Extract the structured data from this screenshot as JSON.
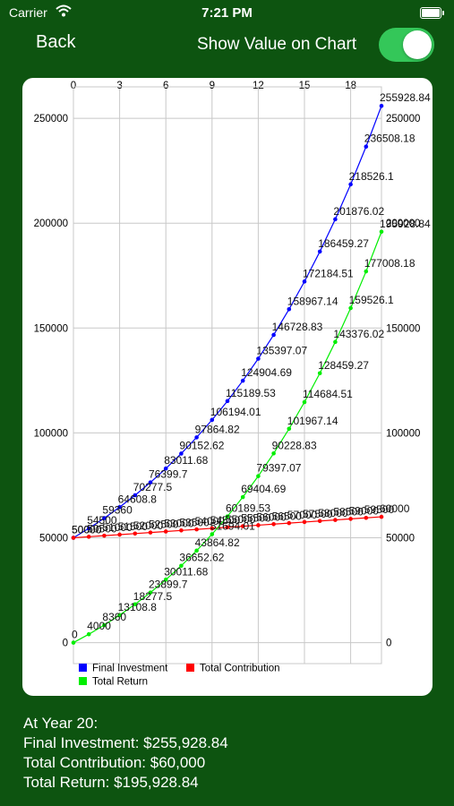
{
  "status_bar": {
    "carrier": "Carrier",
    "time": "7:21 PM"
  },
  "nav": {
    "back_label": "Back",
    "toggle_label": "Show Value on Chart",
    "toggle_on": true
  },
  "chart_data": {
    "type": "line",
    "x": [
      0,
      1,
      2,
      3,
      4,
      5,
      6,
      7,
      8,
      9,
      10,
      11,
      12,
      13,
      14,
      15,
      16,
      17,
      18,
      19,
      20
    ],
    "x_ticks": [
      0,
      3,
      6,
      9,
      12,
      15,
      18
    ],
    "ylim": [
      -10000,
      265000
    ],
    "y_ticks": [
      0,
      50000,
      100000,
      150000,
      200000,
      250000
    ],
    "grid": true,
    "legend_position": "bottom-left",
    "series": [
      {
        "name": "Final Investment",
        "color": "#0000ff",
        "values": [
          50000,
          54500,
          59360,
          64608.8,
          70277.5,
          76399.7,
          83011.68,
          90152.62,
          97864.82,
          106194.01,
          115189.53,
          124904.69,
          135397.07,
          146728.83,
          158967.14,
          172184.51,
          186459.27,
          201876.02,
          218526.1,
          236508.18,
          255928.84
        ],
        "labels": [
          "50000",
          "54500",
          "59360",
          "64608.8",
          "70277.5",
          "76399.7",
          "83011.68",
          "90152.62",
          "97864.82",
          "106194.01",
          "115189.53",
          "124904.69",
          "135397.07",
          "146728.83",
          "158967.14",
          "172184.51",
          "186459.27",
          "201876.02",
          "218526.1",
          "236508.18",
          "255928.84"
        ]
      },
      {
        "name": "Total Contribution",
        "color": "#ff0000",
        "values": [
          50000,
          50500,
          51000,
          51500,
          52000,
          52500,
          53000,
          53500,
          54000,
          54500,
          55000,
          55500,
          56000,
          56500,
          57000,
          57500,
          58000,
          58500,
          59000,
          59500,
          60000
        ],
        "labels": [
          "50000",
          "50500",
          "51000",
          "51500",
          "52000",
          "52500",
          "53000",
          "53500",
          "54000",
          "54500",
          "55000",
          "55500",
          "56000",
          "56500",
          "57000",
          "57500",
          "58000",
          "58500",
          "59000",
          "59500",
          "60000"
        ]
      },
      {
        "name": "Total Return",
        "color": "#00ee00",
        "values": [
          0,
          4000,
          8360,
          13108.8,
          18277.5,
          23899.7,
          30011.68,
          36652.62,
          43864.82,
          51694.01,
          60189.53,
          69404.69,
          79397.07,
          90228.83,
          101967.14,
          114684.51,
          128459.27,
          143376.02,
          159526.1,
          177008.18,
          195928.84
        ],
        "labels": [
          "0",
          "4000",
          "8360",
          "13108.8",
          "18277.5",
          "23899.7",
          "30011.68",
          "36652.62",
          "43864.82",
          "51694.01",
          "60189.53",
          "69404.69",
          "79397.07",
          "90228.83",
          "101967.14",
          "114684.51",
          "128459.27",
          "143376.02",
          "159526.1",
          "177008.18",
          "195928.84"
        ]
      }
    ]
  },
  "summary": {
    "heading": "At Year 20:",
    "final_investment": "Final Investment: $255,928.84",
    "total_contribution": "Total Contribution: $60,000",
    "total_return": "Total Return: $195,928.84"
  }
}
